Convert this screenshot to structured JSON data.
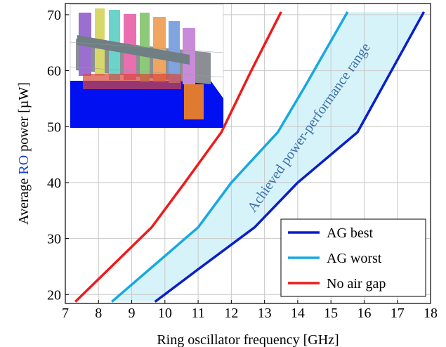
{
  "chart_data": {
    "type": "line",
    "xlabel": "Ring oscillator frequency [GHz]",
    "ylabel": [
      "Average ",
      "RO",
      " power [µW]"
    ],
    "ylabel_highlight_color": "#1a3fd6",
    "annotation": "Achieved power-performance range",
    "annotation_color": "#3a70a8",
    "band_color": "#d7f3fa",
    "xlim": [
      7,
      18
    ],
    "ylim": [
      18.4,
      72
    ],
    "xticks": [
      7,
      8,
      9,
      10,
      11,
      12,
      13,
      14,
      15,
      16,
      17,
      18
    ],
    "yticks": [
      20,
      30,
      40,
      50,
      60,
      70
    ],
    "grid": true,
    "legend": "lower right",
    "series": [
      {
        "name": "AG best",
        "color": "#0a1fc8",
        "x": [
          9.7,
          11,
          12.7,
          14,
          15.8,
          17.8
        ],
        "values": [
          18.7,
          24.5,
          32,
          40,
          49,
          70.5
        ]
      },
      {
        "name": "AG worst",
        "color": "#18a8e0",
        "x": [
          8.4,
          11,
          12,
          13.4,
          14.2,
          15.5
        ],
        "values": [
          18.7,
          32,
          40,
          49,
          57,
          70.5
        ]
      },
      {
        "name": "No air gap",
        "color": "#ee1b1b",
        "x": [
          7.3,
          9.6,
          10.6,
          11.7,
          12.6,
          13.5
        ],
        "values": [
          18.7,
          32,
          40,
          49,
          60,
          70.5
        ]
      }
    ]
  }
}
